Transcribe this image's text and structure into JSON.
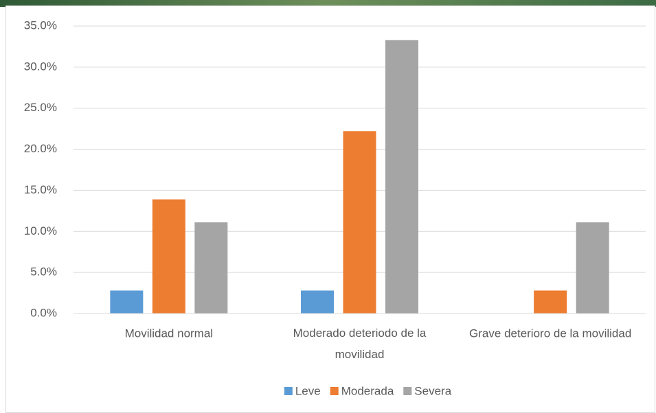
{
  "chart_data": {
    "type": "bar",
    "categories": [
      "Movilidad normal",
      "Moderado deteriodo de la movilidad",
      "Grave deterioro de la movilidad"
    ],
    "series": [
      {
        "name": "Leve",
        "color": "#5b9bd5",
        "values": [
          2.8,
          2.8,
          0
        ]
      },
      {
        "name": "Moderada",
        "color": "#ed7d31",
        "values": [
          13.9,
          22.2,
          2.8
        ]
      },
      {
        "name": "Severa",
        "color": "#a5a5a5",
        "values": [
          11.1,
          33.3,
          11.1
        ]
      }
    ],
    "ylim": [
      0,
      35
    ],
    "yticks": [
      {
        "value": 0,
        "label": "0.0%"
      },
      {
        "value": 5,
        "label": "5.0%"
      },
      {
        "value": 10,
        "label": "10.0%"
      },
      {
        "value": 15,
        "label": "15.0%"
      },
      {
        "value": 20,
        "label": "20.0%"
      },
      {
        "value": 25,
        "label": "25.0%"
      },
      {
        "value": 30,
        "label": "30.0%"
      },
      {
        "value": 35,
        "label": "35.0%"
      }
    ],
    "grid": true,
    "legend": "bottom"
  }
}
